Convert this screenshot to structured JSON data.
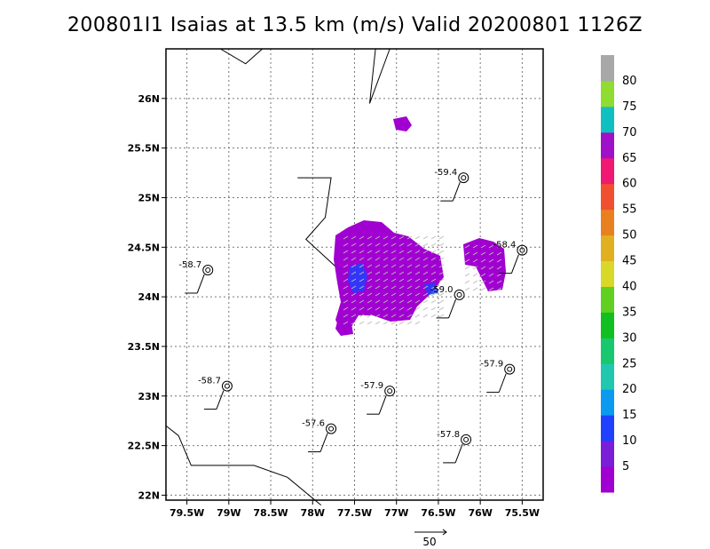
{
  "title": "200801I1 Isaias at 13.5 km (m/s) Valid 20200801 1126Z",
  "chart_data": {
    "type": "map",
    "title": "200801I1 Isaias at 13.5 km (m/s) Valid 20200801 1126Z",
    "xlim": [
      -79.75,
      -75.25
    ],
    "ylim": [
      21.95,
      26.5
    ],
    "x_ticks": [
      {
        "value": -79.5,
        "label": "79.5W"
      },
      {
        "value": -79.0,
        "label": "79W"
      },
      {
        "value": -78.5,
        "label": "78.5W"
      },
      {
        "value": -78.0,
        "label": "78W"
      },
      {
        "value": -77.5,
        "label": "77.5W"
      },
      {
        "value": -77.0,
        "label": "77W"
      },
      {
        "value": -76.5,
        "label": "76.5W"
      },
      {
        "value": -76.0,
        "label": "76W"
      },
      {
        "value": -75.5,
        "label": "75.5W"
      }
    ],
    "y_ticks": [
      {
        "value": 22.0,
        "label": "22N"
      },
      {
        "value": 22.5,
        "label": "22.5N"
      },
      {
        "value": 23.0,
        "label": "23N"
      },
      {
        "value": 23.5,
        "label": "23.5N"
      },
      {
        "value": 24.0,
        "label": "24N"
      },
      {
        "value": 24.5,
        "label": "24.5N"
      },
      {
        "value": 25.0,
        "label": "25N"
      },
      {
        "value": 25.5,
        "label": "25.5N"
      },
      {
        "value": 26.0,
        "label": "26N"
      }
    ],
    "grid": true,
    "colorbar": {
      "labels": [
        "5",
        "10",
        "15",
        "20",
        "25",
        "30",
        "35",
        "40",
        "45",
        "50",
        "55",
        "60",
        "65",
        "70",
        "75",
        "80"
      ],
      "colors": [
        "#a000d0",
        "#7a1ed8",
        "#2040ff",
        "#0a9af0",
        "#20c8b0",
        "#18c870",
        "#10c020",
        "#60d020",
        "#d8d828",
        "#e0b020",
        "#e88020",
        "#f05030",
        "#f01870",
        "#a010c8",
        "#10c0c0",
        "#90dc30",
        "#a8a8a8"
      ]
    },
    "reference_vector": {
      "label": "50",
      "value": 50
    },
    "observations": [
      {
        "label": "-59.4",
        "lon": -76.2,
        "lat": 25.2
      },
      {
        "label": "-58.7",
        "lon": -79.25,
        "lat": 24.27
      },
      {
        "label": "-58.4",
        "lon": -75.5,
        "lat": 24.47
      },
      {
        "label": "-59.0",
        "lon": -76.25,
        "lat": 24.02
      },
      {
        "label": "-57.9",
        "lon": -75.65,
        "lat": 23.27
      },
      {
        "label": "-58.7",
        "lon": -79.02,
        "lat": 23.1
      },
      {
        "label": "-57.9",
        "lon": -77.08,
        "lat": 23.05
      },
      {
        "label": "-57.6",
        "lon": -77.78,
        "lat": 22.67
      },
      {
        "label": "-57.8",
        "lon": -76.17,
        "lat": 22.56
      }
    ]
  }
}
